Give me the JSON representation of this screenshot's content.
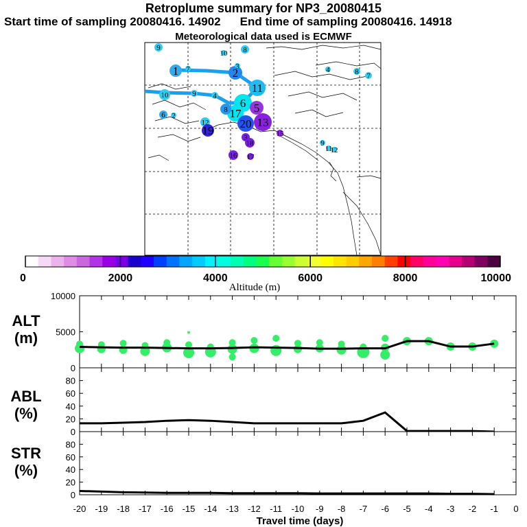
{
  "header": {
    "title": "Retroplume summary for NP3_20080415",
    "start_label": "Start time of sampling 20080416. 14902",
    "end_label": "End time of sampling 20080416. 14918",
    "met_label": "Meteorological data used is ECMWF"
  },
  "colorbar": {
    "label": "Altitude (m)",
    "ticks": [
      "0",
      "2000",
      "4000",
      "6000",
      "8000",
      "10000"
    ],
    "colors": [
      "#ffffff",
      "#f5d9f5",
      "#ebb3eb",
      "#e08ce6",
      "#cc66e0",
      "#b333e6",
      "#9900e6",
      "#7a00e6",
      "#1a00cc",
      "#2200ff",
      "#0040ff",
      "#0073ff",
      "#00a6ff",
      "#00ccff",
      "#00f2ff",
      "#00ffe0",
      "#00ffb3",
      "#00ff80",
      "#1aff4d",
      "#66ff33",
      "#99ff33",
      "#ccff33",
      "#f2ff33",
      "#ffff00",
      "#ffe600",
      "#ffcc00",
      "#ffa600",
      "#ff8000",
      "#ff4000",
      "#ff0000",
      "#ff0066",
      "#ff0099",
      "#ff00b3",
      "#e6008c",
      "#b30073",
      "#800060",
      "#4d0040"
    ]
  },
  "map": {
    "label_numbers": [
      "9",
      "10",
      "8",
      "1",
      "7",
      "2",
      "3",
      "11",
      "10",
      "9",
      "4",
      "6",
      "5",
      "17",
      "8",
      "6",
      "2",
      "12",
      "19",
      "20",
      "13",
      "15",
      "3",
      "18",
      "16",
      "17",
      "9",
      "11",
      "12",
      "4",
      "8",
      "7"
    ]
  },
  "chart_data": [
    {
      "type": "scatter",
      "panel": "ALT",
      "ylabel_line1": "ALT",
      "ylabel_line2": "(m)",
      "ylim": [
        0,
        10000
      ],
      "yticks": [
        "10000",
        "5000",
        "0"
      ],
      "xlim": [
        -20,
        0
      ],
      "mean_line": {
        "x": [
          -20,
          -19,
          -18,
          -17,
          -16,
          -15,
          -14,
          -13,
          -12,
          -11,
          -10,
          -9,
          -8,
          -7,
          -6,
          -5,
          -4,
          -3,
          -2,
          -1
        ],
        "y": [
          2900,
          2850,
          2800,
          2800,
          2750,
          2700,
          2700,
          2750,
          2850,
          2800,
          2750,
          2650,
          2650,
          2700,
          2700,
          3700,
          3700,
          2950,
          2950,
          3350
        ]
      },
      "scatter_points": {
        "x": [
          -20,
          -20,
          -19,
          -19,
          -18,
          -18,
          -17,
          -17,
          -16,
          -16,
          -15,
          -15,
          -15,
          -14,
          -14,
          -13,
          -13,
          -13,
          -12,
          -12,
          -11,
          -11,
          -10,
          -10,
          -9,
          -9,
          -8,
          -8,
          -7,
          -7,
          -6,
          -6,
          -6,
          -5,
          -4,
          -3,
          -2,
          -1
        ],
        "y": [
          3300,
          2700,
          3200,
          2600,
          3400,
          2500,
          3100,
          2300,
          3500,
          2800,
          3200,
          2100,
          4900,
          2900,
          2200,
          3500,
          2600,
          1500,
          3800,
          2700,
          4100,
          2400,
          3400,
          2600,
          3500,
          2700,
          3300,
          2500,
          2900,
          2200,
          4100,
          2800,
          1800,
          3700,
          3700,
          2950,
          2950,
          3350
        ],
        "size": [
          5,
          7,
          5,
          6,
          5,
          6,
          5,
          7,
          5,
          7,
          5,
          8,
          2,
          5,
          8,
          5,
          7,
          5,
          5,
          7,
          5,
          8,
          5,
          6,
          5,
          6,
          5,
          7,
          5,
          9,
          5,
          6,
          7,
          6,
          6,
          6,
          6,
          6
        ]
      },
      "point_color": "#33ee66"
    },
    {
      "type": "line",
      "panel": "ABL",
      "ylabel_line1": "ABL",
      "ylabel_line2": "(%)",
      "ylim": [
        0,
        100
      ],
      "yticks": [
        "80",
        "60",
        "40",
        "20",
        "0"
      ],
      "xlim": [
        -20,
        0
      ],
      "x": [
        -20,
        -19,
        -18,
        -17,
        -16,
        -15,
        -14,
        -13,
        -12,
        -11,
        -10,
        -9,
        -8,
        -7,
        -6,
        -5,
        -4,
        -3,
        -2,
        -1
      ],
      "y": [
        13,
        13,
        14,
        15,
        17,
        18,
        17,
        15,
        13,
        13,
        13,
        13,
        13,
        17,
        30,
        1,
        1,
        1,
        1,
        0
      ]
    },
    {
      "type": "line",
      "panel": "STR",
      "ylabel_line1": "STR",
      "ylabel_line2": "(%)",
      "ylim": [
        0,
        100
      ],
      "yticks": [
        "80",
        "60",
        "40",
        "20",
        "0"
      ],
      "xlim": [
        -20,
        0
      ],
      "x": [
        -20,
        -19,
        -18,
        -17,
        -16,
        -15,
        -14,
        -13,
        -12,
        -11,
        -10,
        -9,
        -8,
        -7,
        -6,
        -5,
        -4,
        -3,
        -2,
        -1
      ],
      "y": [
        6,
        5,
        4,
        3.5,
        3,
        3,
        3,
        2.5,
        2.5,
        2.5,
        2.5,
        2,
        2,
        2,
        2,
        2,
        2,
        1.5,
        1.5,
        1
      ]
    }
  ],
  "xaxis": {
    "label": "Travel time (days)",
    "ticks": [
      "-20",
      "-19",
      "-18",
      "-17",
      "-16",
      "-15",
      "-14",
      "-13",
      "-12",
      "-11",
      "-10",
      "-9",
      "-8",
      "-7",
      "-6",
      "-5",
      "-4",
      "-3",
      "-2",
      "-1",
      "0"
    ]
  }
}
